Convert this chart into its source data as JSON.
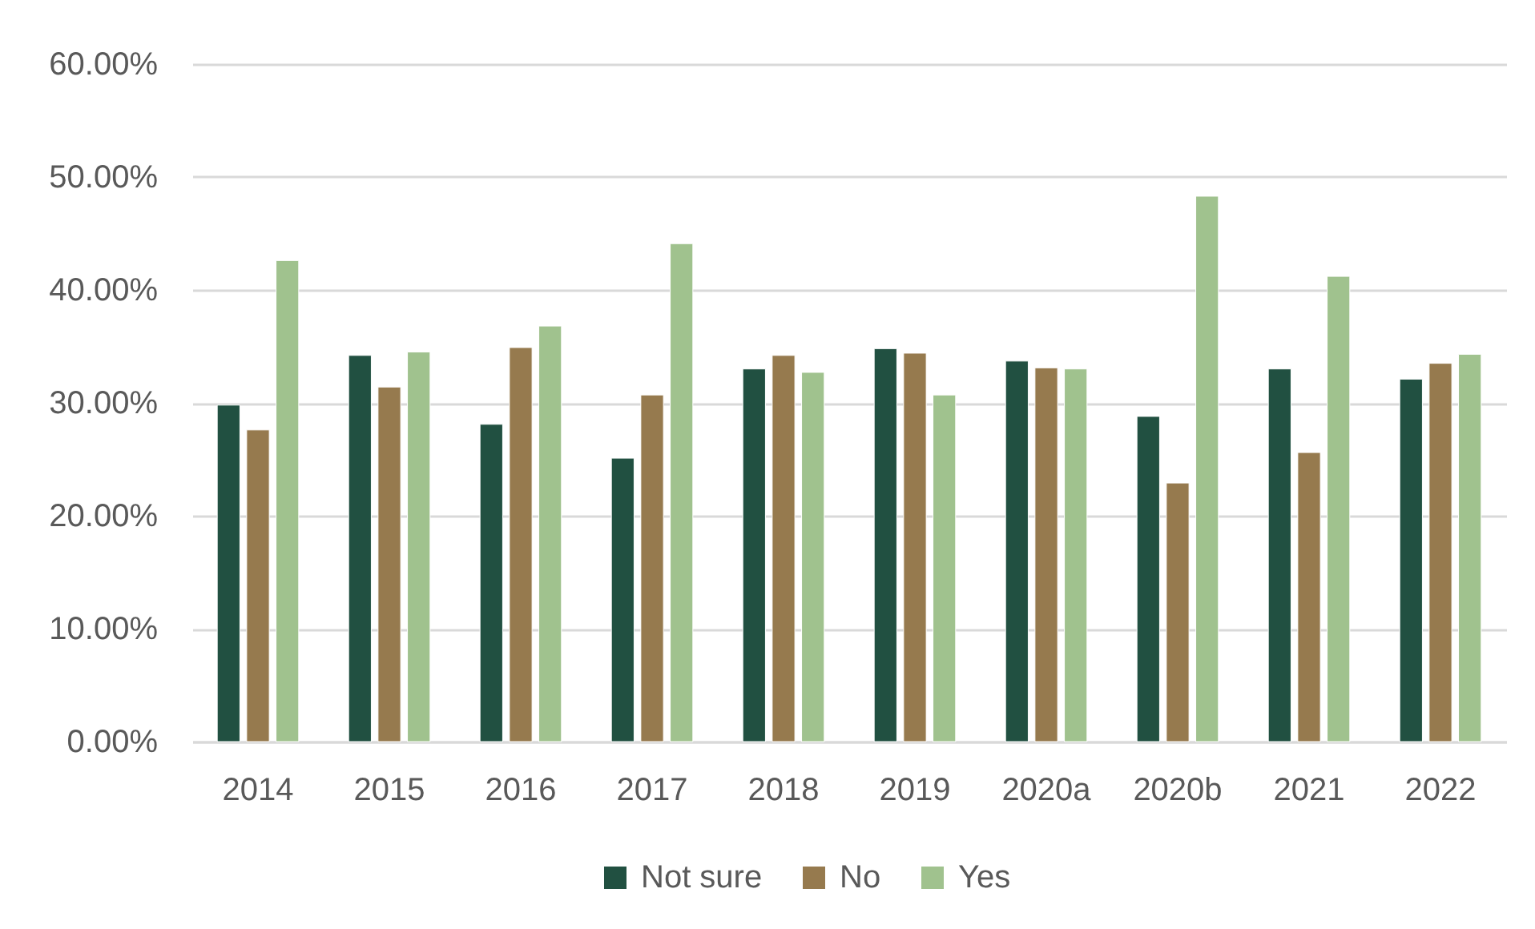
{
  "chart_data": {
    "type": "bar",
    "categories": [
      "2014",
      "2015",
      "2016",
      "2017",
      "2018",
      "2019",
      "2020a",
      "2020b",
      "2021",
      "2022"
    ],
    "series": [
      {
        "name": "Not sure",
        "color": "#215041",
        "values": [
          29.8,
          34.2,
          28.1,
          25.1,
          33.0,
          34.8,
          33.7,
          28.8,
          33.0,
          32.1
        ]
      },
      {
        "name": "No",
        "color": "#967a4e",
        "values": [
          27.6,
          31.4,
          34.9,
          30.7,
          34.2,
          34.4,
          33.1,
          22.9,
          25.6,
          33.5
        ]
      },
      {
        "name": "Yes",
        "color": "#a0c28e",
        "values": [
          42.6,
          34.5,
          36.8,
          44.1,
          32.7,
          30.7,
          33.0,
          48.3,
          41.2,
          34.3
        ]
      }
    ],
    "ylim": [
      0,
      60
    ],
    "yticks": [
      {
        "value": 0,
        "label": "0.00%"
      },
      {
        "value": 10,
        "label": "10.00%"
      },
      {
        "value": 20,
        "label": "20.00%"
      },
      {
        "value": 30,
        "label": "30.00%"
      },
      {
        "value": 40,
        "label": "40.00%"
      },
      {
        "value": 50,
        "label": "50.00%"
      },
      {
        "value": 60,
        "label": "60.00%"
      }
    ],
    "grid": "y",
    "legend": "bottom"
  }
}
